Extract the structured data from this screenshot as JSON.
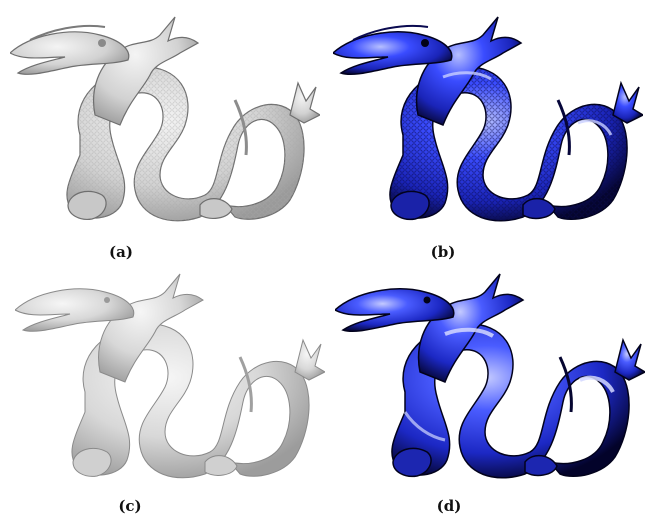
{
  "figure": {
    "panels": [
      {
        "id": "a",
        "caption": "(a)",
        "material": "gray",
        "detail": "rough"
      },
      {
        "id": "b",
        "caption": "(b)",
        "material": "blue",
        "detail": "rough"
      },
      {
        "id": "c",
        "caption": "(c)",
        "material": "gray",
        "detail": "smooth"
      },
      {
        "id": "d",
        "caption": "(d)",
        "material": "blue",
        "detail": "smooth"
      }
    ],
    "colors": {
      "gray_base": "#d4d4d4",
      "gray_light": "#f2f2f2",
      "gray_dark": "#8a8a8a",
      "blue_base": "#2b3cf0",
      "blue_light": "#aab4ff",
      "blue_dark": "#040430",
      "caption": "#111111"
    }
  }
}
